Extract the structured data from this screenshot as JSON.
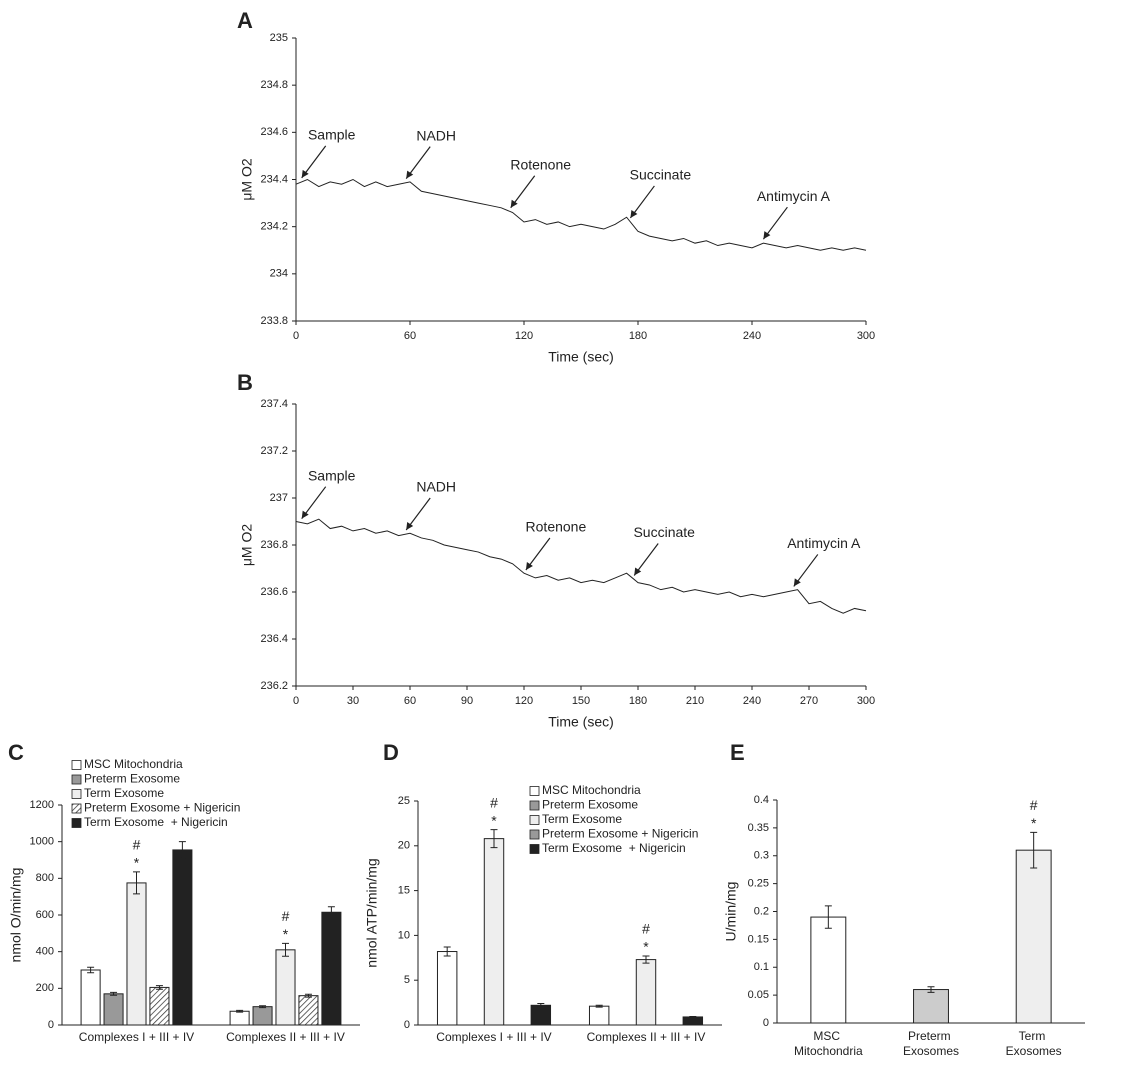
{
  "chart_data": [
    {
      "type": "line",
      "panel": "A",
      "xlabel": "Time (sec)",
      "ylabel": "μM O2",
      "color": "#222",
      "x": [
        0,
        6,
        12,
        18,
        24,
        30,
        36,
        42,
        48,
        54,
        60,
        66,
        72,
        78,
        84,
        90,
        96,
        102,
        108,
        114,
        120,
        126,
        132,
        138,
        144,
        150,
        156,
        162,
        168,
        174,
        180,
        186,
        192,
        198,
        204,
        210,
        216,
        222,
        228,
        234,
        240,
        246,
        252,
        258,
        264,
        270,
        276,
        282,
        288,
        294,
        300
      ],
      "values": [
        234.38,
        234.4,
        234.37,
        234.39,
        234.38,
        234.4,
        234.37,
        234.39,
        234.37,
        234.38,
        234.39,
        234.35,
        234.34,
        234.33,
        234.32,
        234.31,
        234.3,
        234.29,
        234.28,
        234.26,
        234.22,
        234.23,
        234.21,
        234.22,
        234.2,
        234.21,
        234.2,
        234.19,
        234.21,
        234.24,
        234.18,
        234.16,
        234.15,
        234.14,
        234.15,
        234.13,
        234.14,
        234.12,
        234.13,
        234.12,
        234.11,
        234.13,
        234.12,
        234.11,
        234.12,
        234.11,
        234.1,
        234.11,
        234.1,
        234.11,
        234.1
      ],
      "xlim": [
        0,
        300
      ],
      "xticks": [
        0,
        60,
        120,
        180,
        240,
        300
      ],
      "ylim": [
        233.8,
        235
      ],
      "yticks": [
        233.8,
        234,
        234.2,
        234.4,
        234.6,
        234.8,
        235
      ],
      "annotations": [
        {
          "text": "Sample",
          "x": 3
        },
        {
          "text": "NADH",
          "x": 58
        },
        {
          "text": "Rotenone",
          "x": 113
        },
        {
          "text": "Succinate",
          "x": 176
        },
        {
          "text": "Antimycin A",
          "x": 246
        }
      ]
    },
    {
      "type": "line",
      "panel": "B",
      "xlabel": "Time (sec)",
      "ylabel": "μM O2",
      "color": "#222",
      "x": [
        0,
        6,
        12,
        18,
        24,
        30,
        36,
        42,
        48,
        54,
        60,
        66,
        72,
        78,
        84,
        90,
        96,
        102,
        108,
        114,
        120,
        126,
        132,
        138,
        144,
        150,
        156,
        162,
        168,
        174,
        180,
        186,
        192,
        198,
        204,
        210,
        216,
        222,
        228,
        234,
        240,
        246,
        252,
        258,
        264,
        270,
        276,
        282,
        288,
        294,
        300
      ],
      "values": [
        236.9,
        236.89,
        236.91,
        236.87,
        236.88,
        236.86,
        236.87,
        236.85,
        236.86,
        236.84,
        236.85,
        236.83,
        236.82,
        236.8,
        236.79,
        236.78,
        236.77,
        236.75,
        236.74,
        236.72,
        236.68,
        236.66,
        236.67,
        236.65,
        236.66,
        236.64,
        236.65,
        236.64,
        236.66,
        236.68,
        236.64,
        236.63,
        236.61,
        236.62,
        236.6,
        236.61,
        236.6,
        236.59,
        236.6,
        236.58,
        236.59,
        236.58,
        236.59,
        236.6,
        236.61,
        236.55,
        236.56,
        236.53,
        236.51,
        236.53,
        236.52
      ],
      "xlim": [
        0,
        300
      ],
      "xticks": [
        0,
        30,
        60,
        90,
        120,
        150,
        180,
        210,
        240,
        270,
        300
      ],
      "ylim": [
        236.2,
        237.4
      ],
      "yticks": [
        236.2,
        236.4,
        236.6,
        236.8,
        237,
        237.2,
        237.4
      ],
      "annotations": [
        {
          "text": "Sample",
          "x": 3
        },
        {
          "text": "NADH",
          "x": 58
        },
        {
          "text": "Rotenone",
          "x": 121
        },
        {
          "text": "Succinate",
          "x": 178
        },
        {
          "text": "Antimycin A",
          "x": 262
        }
      ]
    },
    {
      "type": "bar",
      "panel": "C",
      "ylabel": "nmol O/min/mg",
      "categories": [
        "Complexes I + III + IV",
        "Complexes II + III + IV"
      ],
      "series": [
        {
          "name": "MSC Mitochondria",
          "color": "#ffffff",
          "values": [
            300,
            75
          ],
          "errors": [
            15,
            5
          ]
        },
        {
          "name": "Preterm Exosome",
          "color": "#999999",
          "values": [
            170,
            100
          ],
          "errors": [
            8,
            5
          ]
        },
        {
          "name": "Term Exosome",
          "color": "#eeeeee",
          "values": [
            775,
            410
          ],
          "errors": [
            60,
            35
          ]
        },
        {
          "name": "Preterm Exosome + Nigericin",
          "color": "#ffffff",
          "hatch": true,
          "values": [
            205,
            160
          ],
          "errors": [
            10,
            8
          ]
        },
        {
          "name": "Term Exosome  + Nigericin",
          "color": "#222222",
          "values": [
            955,
            615
          ],
          "errors": [
            45,
            30
          ]
        }
      ],
      "ylim": [
        0,
        1200
      ],
      "yticks": [
        0,
        200,
        400,
        600,
        800,
        1000,
        1200
      ],
      "annotations": [
        {
          "text": "*",
          "series": 2,
          "category": 0
        },
        {
          "text": "#",
          "series": 2,
          "category": 0
        },
        {
          "text": "*",
          "series": 2,
          "category": 1
        },
        {
          "text": "#",
          "series": 2,
          "category": 1
        }
      ]
    },
    {
      "type": "bar",
      "panel": "D",
      "ylabel": "nmol ATP/min/mg",
      "categories": [
        "Complexes I + III + IV",
        "Complexes II + III + IV"
      ],
      "series": [
        {
          "name": "MSC Mitochondria",
          "color": "#ffffff",
          "values": [
            8.2,
            2.1
          ],
          "errors": [
            0.5,
            0.1
          ]
        },
        {
          "name": "Preterm Exosome",
          "color": "#999999",
          "values": [
            null,
            null
          ]
        },
        {
          "name": "Term Exosome",
          "color": "#eeeeee",
          "values": [
            20.8,
            7.3
          ],
          "errors": [
            1,
            0.4
          ]
        },
        {
          "name": "Preterm Exosome + Nigericin",
          "color": "#999999",
          "values": [
            null,
            null
          ]
        },
        {
          "name": "Term Exosome  + Nigericin",
          "color": "#222222",
          "values": [
            2.2,
            0.9
          ],
          "errors": [
            0.2,
            0.05
          ]
        }
      ],
      "ylim": [
        0,
        25
      ],
      "yticks": [
        0,
        5,
        10,
        15,
        20,
        25
      ],
      "annotations": [
        {
          "text": "*",
          "series": 2,
          "category": 0
        },
        {
          "text": "#",
          "series": 2,
          "category": 0
        },
        {
          "text": "*",
          "series": 2,
          "category": 1
        },
        {
          "text": "#",
          "series": 2,
          "category": 1
        }
      ]
    },
    {
      "type": "bar",
      "panel": "E",
      "ylabel": "U/min/mg",
      "categories": [
        "MSC Mitochondria",
        "Preterm Exosomes",
        "Term Exosomes"
      ],
      "values": [
        0.19,
        0.06,
        0.31
      ],
      "errors": [
        0.02,
        0.005,
        0.032
      ],
      "colors": [
        "#ffffff",
        "#cccccc",
        "#eeeeee"
      ],
      "ylim": [
        0,
        0.4
      ],
      "yticks": [
        0,
        0.05,
        0.1,
        0.15,
        0.2,
        0.25,
        0.3,
        0.35,
        0.4
      ],
      "annotations": [
        {
          "text": "*",
          "category": 2
        },
        {
          "text": "#",
          "category": 2
        }
      ]
    }
  ]
}
